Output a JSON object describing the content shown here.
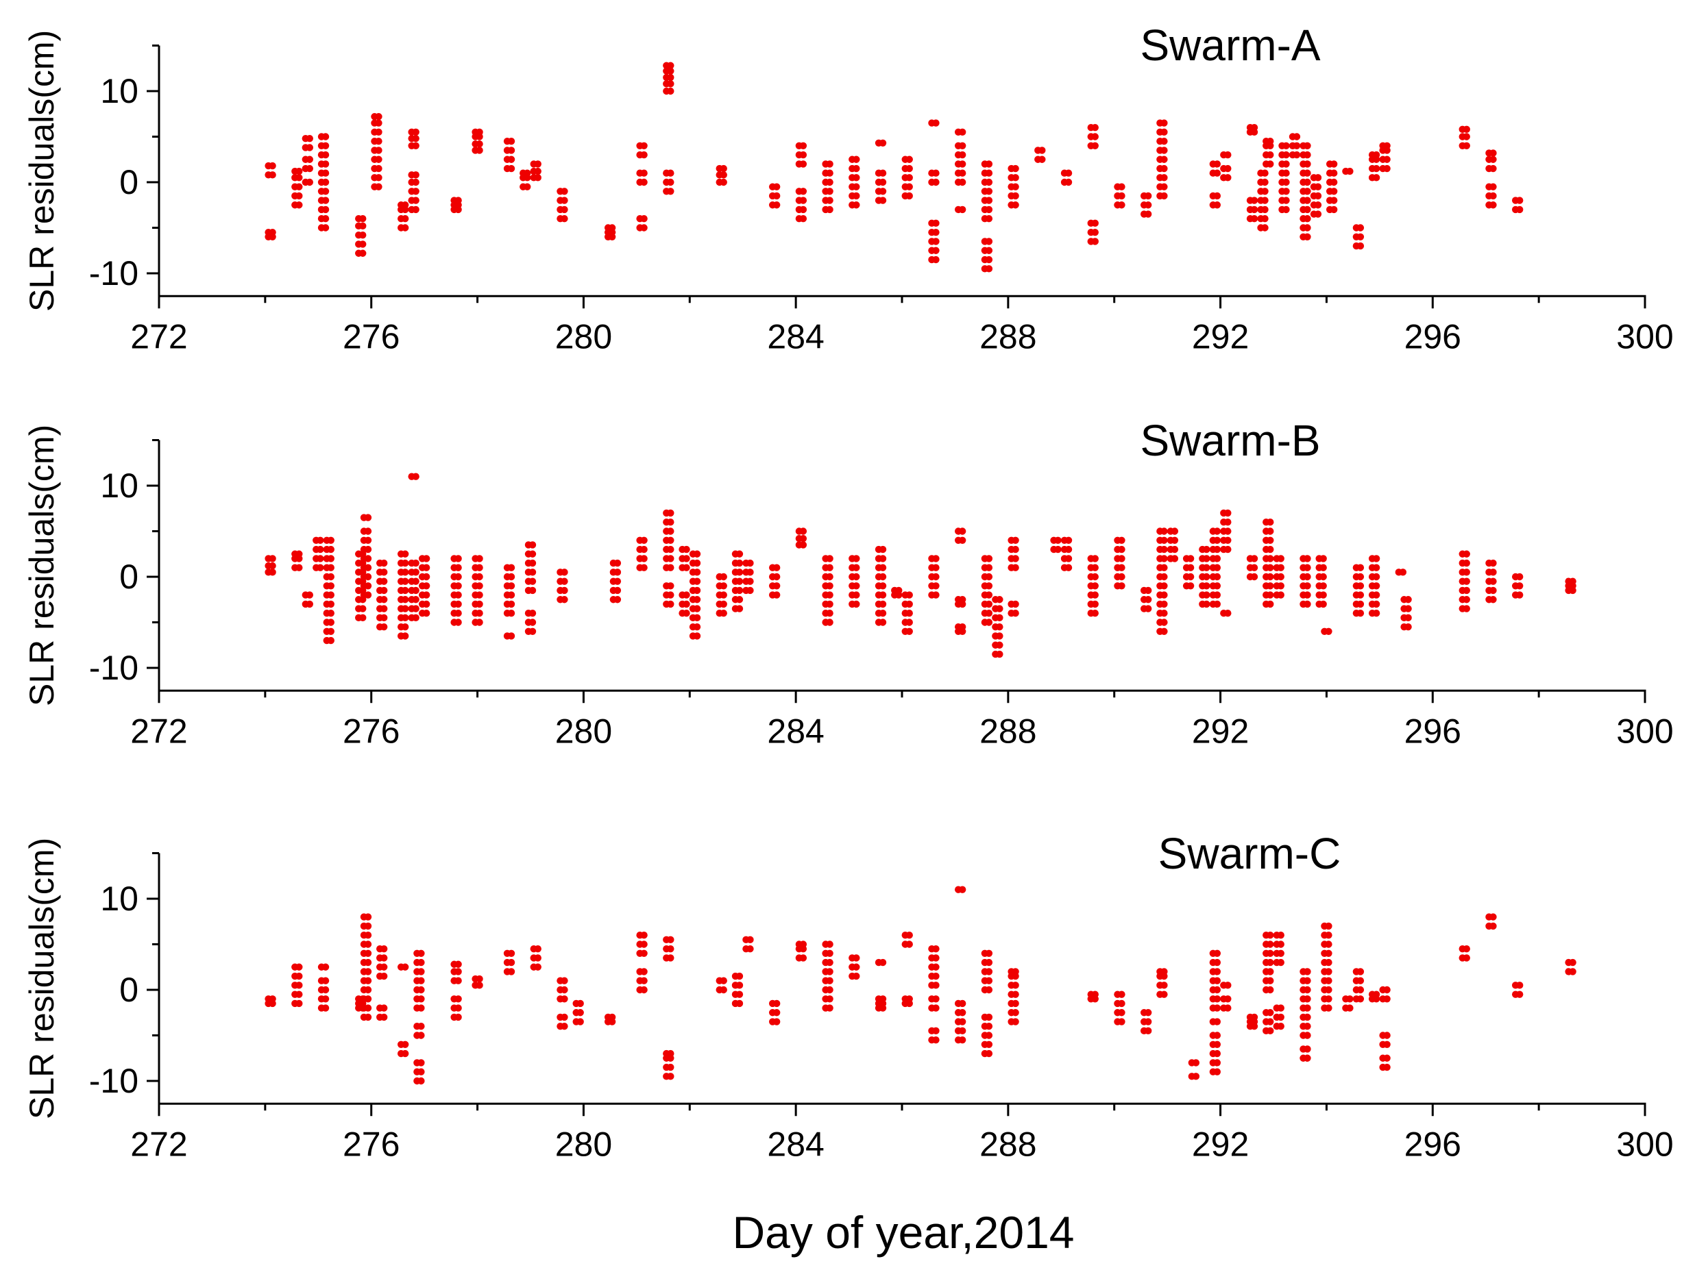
{
  "figure": {
    "xlabel": "Day of year,2014"
  },
  "chart_data": [
    {
      "type": "scatter",
      "title": "Swarm-A",
      "xlabel": "",
      "ylabel": "SLR residuals(cm)",
      "xlim": [
        272,
        300
      ],
      "ylim": [
        -12.5,
        15
      ],
      "xticks": [
        "272",
        "276",
        "280",
        "284",
        "288",
        "292",
        "296",
        "300"
      ],
      "yticks": [
        "10",
        "0",
        "-10"
      ],
      "color": "#ee0000",
      "columns": [
        [
          274.1,
          -6,
          -5.5,
          0.8,
          1.8
        ],
        [
          274.6,
          -2.5,
          -1.5,
          -0.5,
          0.5,
          1.2
        ],
        [
          274.8,
          0,
          1.5,
          2.5,
          3.8,
          4.8
        ],
        [
          275.1,
          -5,
          -4,
          -3,
          -2,
          -1,
          0,
          1,
          2,
          3,
          4,
          5
        ],
        [
          275.8,
          -7.8,
          -6.8,
          -5.8,
          -4.8,
          -4
        ],
        [
          276.1,
          -0.5,
          0.5,
          1.5,
          2.5,
          3.5,
          4.5,
          5.5,
          6.5,
          7.2
        ],
        [
          276.6,
          -5,
          -4,
          -3,
          -2.5
        ],
        [
          276.8,
          -3,
          -2,
          -1,
          0,
          0.8,
          4,
          4.8,
          5.5
        ],
        [
          277.6,
          -3,
          -2.5,
          -2
        ],
        [
          278.0,
          3.5,
          4.2,
          5,
          5.5
        ],
        [
          278.6,
          1.5,
          2.5,
          3.5,
          4.5
        ],
        [
          278.9,
          -0.5,
          0.5,
          1
        ],
        [
          279.1,
          0.5,
          1.2,
          2
        ],
        [
          279.6,
          -4,
          -3,
          -2,
          -1
        ],
        [
          280.5,
          -6,
          -5.5,
          -5
        ],
        [
          281.1,
          -5,
          -4,
          0,
          1,
          3,
          4
        ],
        [
          281.6,
          -1,
          0,
          1,
          10,
          10.8,
          11.5,
          12.2,
          12.8
        ],
        [
          282.6,
          0,
          0.8,
          1.5
        ],
        [
          283.6,
          -2.5,
          -1.5,
          -0.5
        ],
        [
          284.1,
          -4,
          -3,
          -2,
          -1,
          2,
          3,
          4
        ],
        [
          284.6,
          -3,
          -2,
          -1,
          0,
          1,
          2
        ],
        [
          285.1,
          -2.5,
          -1.5,
          -0.5,
          0.5,
          1.5,
          2.5
        ],
        [
          285.6,
          -2,
          -1,
          0,
          1,
          4.3
        ],
        [
          286.1,
          -1.5,
          -0.5,
          0.5,
          1.5,
          2.5
        ],
        [
          286.6,
          -8.5,
          -7.5,
          -6.5,
          -5.5,
          -4.5,
          0,
          1,
          6.5
        ],
        [
          287.1,
          -3,
          0,
          1,
          2,
          3,
          4,
          5.5
        ],
        [
          287.6,
          -9.5,
          -8.5,
          -7.5,
          -6.5,
          -4,
          -3,
          -2,
          -1,
          0,
          1,
          2
        ],
        [
          288.1,
          -2.5,
          -1.5,
          -0.5,
          0.5,
          1.5
        ],
        [
          288.6,
          2.5,
          3.5
        ],
        [
          289.1,
          0,
          1
        ],
        [
          289.6,
          -6.5,
          -5.5,
          -4.5,
          4,
          5,
          6
        ],
        [
          290.1,
          -2.5,
          -1.5,
          -0.5
        ],
        [
          290.6,
          -3.5,
          -2.5,
          -1.5
        ],
        [
          290.9,
          -1.5,
          -0.5,
          0.5,
          1.5,
          2.5,
          3.5,
          4.5,
          5.5,
          6.5
        ],
        [
          291.9,
          -2.5,
          -1.5,
          1,
          2
        ],
        [
          292.1,
          0.5,
          1.5,
          3
        ],
        [
          292.6,
          -4,
          -3,
          -2,
          5.5,
          6
        ],
        [
          292.8,
          -5,
          -4,
          -3,
          -2,
          -1,
          0,
          1
        ],
        [
          292.9,
          2,
          3,
          4,
          4.5
        ],
        [
          293.2,
          -3,
          -2,
          -1,
          0,
          1,
          2,
          3,
          4
        ],
        [
          293.4,
          3,
          4,
          5
        ],
        [
          293.6,
          -6,
          -5,
          -4,
          -3,
          -2,
          -1,
          0,
          1,
          2,
          3,
          4
        ],
        [
          293.8,
          -3.5,
          -2.5,
          -1.5,
          -0.5,
          0.5
        ],
        [
          294.1,
          -3,
          -2,
          -1,
          0,
          1,
          2
        ],
        [
          294.4,
          1.2
        ],
        [
          294.6,
          -7,
          -6,
          -5
        ],
        [
          294.9,
          0.5,
          1.5,
          2.5,
          3
        ],
        [
          295.1,
          1.5,
          2.5,
          3.5,
          4
        ],
        [
          296.6,
          4,
          5,
          5.8
        ],
        [
          297.1,
          -2.5,
          -1.5,
          -0.5,
          1.5,
          2.5,
          3.2
        ],
        [
          297.6,
          -3,
          -2
        ]
      ]
    },
    {
      "type": "scatter",
      "title": "Swarm-B",
      "xlabel": "",
      "ylabel": "SLR residuals(cm)",
      "xlim": [
        272,
        300
      ],
      "ylim": [
        -12.5,
        15
      ],
      "xticks": [
        "272",
        "276",
        "280",
        "284",
        "288",
        "292",
        "296",
        "300"
      ],
      "yticks": [
        "10",
        "0",
        "-10"
      ],
      "color": "#ee0000",
      "columns": [
        [
          274.1,
          0.5,
          1.2,
          2
        ],
        [
          274.6,
          1,
          2,
          2.5
        ],
        [
          274.8,
          -3,
          -2
        ],
        [
          275.0,
          1,
          2,
          3,
          4
        ],
        [
          275.2,
          -7,
          -6,
          -5,
          -4,
          -3,
          -2,
          -1,
          0,
          1,
          2,
          3,
          4
        ],
        [
          275.8,
          -4.5,
          -3.5,
          -2.5,
          -1.5,
          -0.5,
          0.5,
          1.5,
          2.5
        ],
        [
          275.9,
          -2,
          -1,
          0,
          1,
          2,
          3,
          4,
          5,
          6.5
        ],
        [
          276.2,
          -5.5,
          -4.5,
          -3.5,
          -2.5,
          -1.5,
          -0.5,
          0.5,
          1.5
        ],
        [
          276.6,
          -6.5,
          -5.5,
          -4.5,
          -3.5,
          -2.5,
          -1.5,
          -0.5,
          0.5,
          1.5,
          2.5
        ],
        [
          276.8,
          -4.5,
          -3.5,
          -2.5,
          -1.5,
          -0.5,
          0.5,
          1.5,
          11
        ],
        [
          277.0,
          -4,
          -3,
          -2,
          -1,
          0,
          1,
          2
        ],
        [
          277.6,
          -5,
          -4,
          -3,
          -2,
          -1,
          0,
          1,
          2
        ],
        [
          278.0,
          -5,
          -4,
          -3,
          -2,
          -1,
          0,
          1,
          2
        ],
        [
          278.6,
          -6.5,
          -4,
          -3,
          -2,
          -1,
          0,
          1
        ],
        [
          279.0,
          -6,
          -5,
          -4,
          -1.5,
          -0.5,
          0.5,
          1.5,
          2.5,
          3.5
        ],
        [
          279.6,
          -2.5,
          -1.5,
          -0.5,
          0.5
        ],
        [
          280.6,
          -2.5,
          -1.5,
          -0.5,
          0.5,
          1.5
        ],
        [
          281.1,
          1,
          2,
          3,
          4
        ],
        [
          281.6,
          -3,
          -2,
          -1,
          1,
          2,
          3,
          4,
          5,
          6,
          7
        ],
        [
          281.9,
          -4,
          -3,
          -2,
          1,
          2,
          3
        ],
        [
          282.1,
          -6.5,
          -5.5,
          -4.5,
          -3.5,
          -2.5,
          -1.5,
          -0.5,
          0.5,
          1.5,
          2.5
        ],
        [
          282.6,
          -4,
          -3,
          -2,
          -1,
          0
        ],
        [
          282.9,
          -3.5,
          -2.5,
          -1.5,
          -0.5,
          0.5,
          1.5,
          2.5
        ],
        [
          283.1,
          -1.5,
          -0.5,
          0.5,
          1.5
        ],
        [
          283.6,
          -2,
          -1,
          0,
          1
        ],
        [
          284.1,
          3.5,
          4.2,
          5
        ],
        [
          284.6,
          -5,
          -4,
          -3,
          -2,
          -1,
          0,
          1,
          2
        ],
        [
          285.1,
          -3,
          -2,
          -1,
          0,
          1,
          2
        ],
        [
          285.6,
          -5,
          -4,
          -3,
          -2,
          -1,
          0,
          1,
          2,
          3
        ],
        [
          285.9,
          -2,
          -1.5
        ],
        [
          286.1,
          -6,
          -5,
          -4,
          -3,
          -2
        ],
        [
          286.6,
          -2,
          -1,
          0,
          1,
          2
        ],
        [
          287.1,
          -6,
          -5.5,
          -3,
          -2.5,
          4,
          5
        ],
        [
          287.6,
          -5,
          -4,
          -3,
          -2,
          -1,
          0,
          1,
          2
        ],
        [
          287.8,
          -8.5,
          -7.5,
          -6.5,
          -5.5,
          -4.5,
          -3.5,
          -2.5
        ],
        [
          288.1,
          -4,
          -3,
          1,
          2,
          3,
          4
        ],
        [
          288.9,
          3,
          4
        ],
        [
          289.1,
          1,
          2,
          3,
          4
        ],
        [
          289.6,
          -4,
          -3,
          -2,
          -1,
          0,
          1,
          2
        ],
        [
          290.1,
          -1,
          0,
          1,
          2,
          3,
          4
        ],
        [
          290.6,
          -3.5,
          -2.5,
          -1.5
        ],
        [
          290.9,
          -6,
          -5,
          -4,
          -3,
          -2,
          -1,
          0,
          1,
          2,
          3,
          4,
          5
        ],
        [
          291.1,
          2,
          3,
          4,
          5
        ],
        [
          291.4,
          -1,
          0,
          1,
          2
        ],
        [
          291.7,
          -3,
          -2,
          -1,
          0,
          1,
          2,
          3
        ],
        [
          291.9,
          -3,
          -2,
          -1,
          0,
          1,
          2,
          3,
          4,
          5
        ],
        [
          292.1,
          -4,
          3,
          4,
          5,
          6,
          7
        ],
        [
          292.6,
          0,
          1,
          2
        ],
        [
          292.9,
          -3,
          -2,
          -1,
          0,
          1,
          2,
          3,
          4,
          5,
          6
        ],
        [
          293.1,
          -2,
          -1,
          0,
          1,
          2
        ],
        [
          293.6,
          -3,
          -2,
          -1,
          0,
          1,
          2
        ],
        [
          293.9,
          -3,
          -2,
          -1,
          0,
          1,
          2
        ],
        [
          294.0,
          -6
        ],
        [
          294.6,
          -4,
          -3,
          -2,
          -1,
          0,
          1
        ],
        [
          294.9,
          -4,
          -3,
          -2,
          -1,
          0,
          1,
          2
        ],
        [
          295.4,
          0.5
        ],
        [
          295.5,
          -5.5,
          -4.5,
          -3.5,
          -2.5
        ],
        [
          296.6,
          -3.5,
          -2.5,
          -1.5,
          -0.5,
          0.5,
          1.5,
          2.5
        ],
        [
          297.1,
          -2.5,
          -1.5,
          -0.5,
          0.5,
          1.5
        ],
        [
          297.6,
          -2,
          -1,
          0
        ],
        [
          298.6,
          -1.5,
          -1,
          -0.5
        ]
      ]
    },
    {
      "type": "scatter",
      "title": "Swarm-C",
      "xlabel": "Day of year,2014",
      "ylabel": "SLR residuals(cm)",
      "xlim": [
        272,
        300
      ],
      "ylim": [
        -12.5,
        15
      ],
      "xticks": [
        "272",
        "276",
        "280",
        "284",
        "288",
        "292",
        "296",
        "300"
      ],
      "yticks": [
        "10",
        "0",
        "-10"
      ],
      "color": "#ee0000",
      "columns": [
        [
          274.1,
          -1.5,
          -1
        ],
        [
          274.6,
          -1.5,
          -0.5,
          0.5,
          1.5,
          2.5
        ],
        [
          275.1,
          -2,
          -1,
          0,
          1,
          2.5
        ],
        [
          275.8,
          -2,
          -1.5,
          -1
        ],
        [
          275.9,
          -3,
          -2,
          -1,
          0,
          1,
          2,
          3,
          4,
          5,
          6,
          7,
          8
        ],
        [
          276.2,
          -3,
          -2,
          1.5,
          2.5,
          3.5,
          4.5
        ],
        [
          276.6,
          -7,
          -6,
          2.5
        ],
        [
          276.9,
          -10,
          -9,
          -8,
          -5,
          -4,
          -2,
          -1,
          0,
          1,
          2,
          3,
          4
        ],
        [
          277.6,
          -3,
          -2,
          -1,
          1,
          2,
          2.8
        ],
        [
          278.0,
          0.5,
          1.2
        ],
        [
          278.6,
          2,
          3,
          4
        ],
        [
          279.1,
          2.5,
          3.5,
          4.5
        ],
        [
          279.6,
          -4,
          -3,
          -1,
          0,
          1
        ],
        [
          279.9,
          -3.5,
          -2.5,
          -1.5
        ],
        [
          280.5,
          -3.5,
          -3
        ],
        [
          281.1,
          0,
          1,
          2,
          4,
          5,
          6
        ],
        [
          281.6,
          -9.5,
          -8.5,
          -7.5,
          -7,
          3.5,
          4.5,
          5.5
        ],
        [
          282.6,
          0,
          1
        ],
        [
          282.9,
          -1.5,
          -0.5,
          0.5,
          1.5
        ],
        [
          283.1,
          4.5,
          5.5
        ],
        [
          283.6,
          -3.5,
          -2.5,
          -1.5
        ],
        [
          284.1,
          3.5,
          4.5,
          5
        ],
        [
          284.6,
          -2,
          -1,
          0,
          1,
          2,
          3,
          4,
          5
        ],
        [
          285.1,
          1.5,
          2.5,
          3.5
        ],
        [
          285.6,
          -2,
          -1.5,
          -1,
          3
        ],
        [
          286.1,
          -1.5,
          -1,
          5,
          6
        ],
        [
          286.6,
          -5.5,
          -4.5,
          -2,
          -1,
          0.5,
          1.5,
          2.5,
          3.5,
          4.5
        ],
        [
          287.1,
          -5.5,
          -4.5,
          -3.5,
          -2.5,
          -1.5,
          11
        ],
        [
          287.6,
          -7,
          -6,
          -5,
          -4,
          -3,
          0,
          1,
          2,
          3,
          4
        ],
        [
          288.1,
          -3.5,
          -2.5,
          -1.5,
          -0.5,
          0.5,
          1.5,
          2
        ],
        [
          289.6,
          -1,
          -0.5
        ],
        [
          290.1,
          -3.5,
          -2.5,
          -1.5,
          -0.5
        ],
        [
          290.6,
          -4.5,
          -3.5,
          -2.5
        ],
        [
          290.9,
          -0.5,
          0.5,
          1.5,
          2
        ],
        [
          291.5,
          -9.5,
          -8
        ],
        [
          291.9,
          -9,
          -8,
          -7,
          -6,
          -5,
          -3.5,
          -2,
          -1,
          0,
          1,
          2,
          3,
          4
        ],
        [
          292.1,
          -2,
          -1,
          0.5
        ],
        [
          292.6,
          -4,
          -3.5,
          -3
        ],
        [
          292.9,
          -4.5,
          -3.5,
          -2.5,
          0,
          1,
          2,
          3,
          4,
          5,
          6
        ],
        [
          293.1,
          -4,
          -3,
          -2,
          3,
          4,
          5,
          6
        ],
        [
          293.6,
          -7.5,
          -6.5,
          -5,
          -4,
          -3,
          -2,
          -1,
          0,
          1,
          2
        ],
        [
          294.0,
          -2,
          -1,
          0,
          1,
          2,
          3,
          4,
          5,
          6,
          7
        ],
        [
          294.4,
          -2,
          -1
        ],
        [
          294.6,
          -1,
          0,
          1,
          2
        ],
        [
          294.9,
          -1,
          -0.5
        ],
        [
          295.1,
          -8.5,
          -7.5,
          -6,
          -5,
          -1,
          0
        ],
        [
          296.6,
          3.5,
          4.5
        ],
        [
          297.1,
          7,
          8
        ],
        [
          297.6,
          -0.5,
          0.5
        ],
        [
          298.6,
          2,
          3
        ]
      ]
    }
  ]
}
